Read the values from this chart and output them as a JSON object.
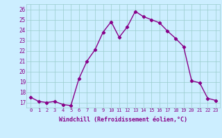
{
  "x": [
    0,
    1,
    2,
    3,
    4,
    5,
    6,
    7,
    8,
    9,
    10,
    11,
    12,
    13,
    14,
    15,
    16,
    17,
    18,
    19,
    20,
    21,
    22,
    23
  ],
  "y": [
    17.5,
    17.1,
    17.0,
    17.1,
    16.8,
    16.7,
    19.3,
    21.0,
    22.1,
    23.8,
    24.8,
    23.3,
    24.3,
    25.8,
    25.3,
    25.0,
    24.7,
    23.9,
    23.2,
    22.4,
    19.1,
    18.9,
    17.4,
    17.2
  ],
  "line_color": "#880088",
  "marker": "D",
  "marker_size": 2.2,
  "linewidth": 1.0,
  "xlabel": "Windchill (Refroidissement éolien,°C)",
  "xlabel_fontsize": 6.0,
  "ylim": [
    16.5,
    26.5
  ],
  "yticks": [
    17,
    18,
    19,
    20,
    21,
    22,
    23,
    24,
    25,
    26
  ],
  "xticks": [
    0,
    1,
    2,
    3,
    4,
    5,
    6,
    7,
    8,
    9,
    10,
    11,
    12,
    13,
    14,
    15,
    16,
    17,
    18,
    19,
    20,
    21,
    22,
    23
  ],
  "xtick_fontsize": 5.0,
  "ytick_fontsize": 5.5,
  "bg_color": "#cceeff",
  "grid_color": "#99cccc",
  "tick_color": "#880088",
  "label_color": "#880088"
}
